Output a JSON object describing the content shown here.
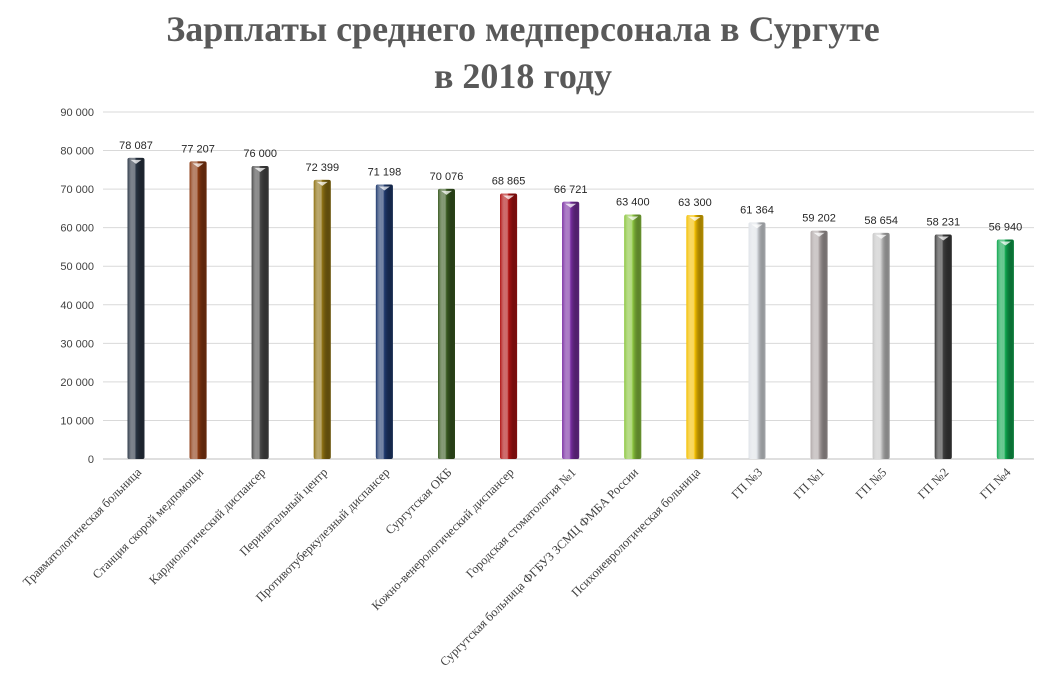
{
  "chart_data": {
    "type": "bar",
    "title_lines": [
      "Зарплаты среднего медперсонала в Сургуте",
      "в 2018 году"
    ],
    "xlabel": "",
    "ylabel": "",
    "ylim": [
      0,
      90000
    ],
    "yticks": [
      0,
      10000,
      20000,
      30000,
      40000,
      50000,
      60000,
      70000,
      80000,
      90000
    ],
    "ytick_labels": [
      "0",
      "10 000",
      "20 000",
      "30 000",
      "40 000",
      "50 000",
      "60 000",
      "70 000",
      "80 000",
      "90 000"
    ],
    "grid": true,
    "categories": [
      "Травматологическая больница",
      "Станция скорой медпомощи",
      "Кардиологический диспансер",
      "Перинатальный центр",
      "Противотуберкулезный диспансер",
      "Сургутская ОКБ",
      "Кожно-венерологический диспансер",
      "Городская стоматология №1",
      "Сургутская больница ФГБУЗ ЗСМЦ ФМБА России",
      "Психоневрологическая больница",
      "ГП №3",
      "ГП №1",
      "ГП №5",
      "ГП №2",
      "ГП №4"
    ],
    "values": [
      78087,
      77207,
      76000,
      72399,
      71198,
      70076,
      68865,
      66721,
      63400,
      63300,
      61364,
      59202,
      58654,
      58231,
      56940
    ],
    "value_labels": [
      "78 087",
      "77 207",
      "76 000",
      "72 399",
      "71 198",
      "70 076",
      "68 865",
      "66 721",
      "63 400",
      "63 300",
      "61 364",
      "59 202",
      "58 654",
      "58 231",
      "56 940"
    ],
    "colors": [
      "#2b3645",
      "#8c3a12",
      "#4a4a4a",
      "#8f7212",
      "#1f3a6e",
      "#3a5c22",
      "#b01212",
      "#7a2fa3",
      "#8cc63f",
      "#f5c000",
      "#dfe3e8",
      "#b0a8a8",
      "#c8c8c8",
      "#3f3f3f",
      "#0fa84f"
    ]
  }
}
